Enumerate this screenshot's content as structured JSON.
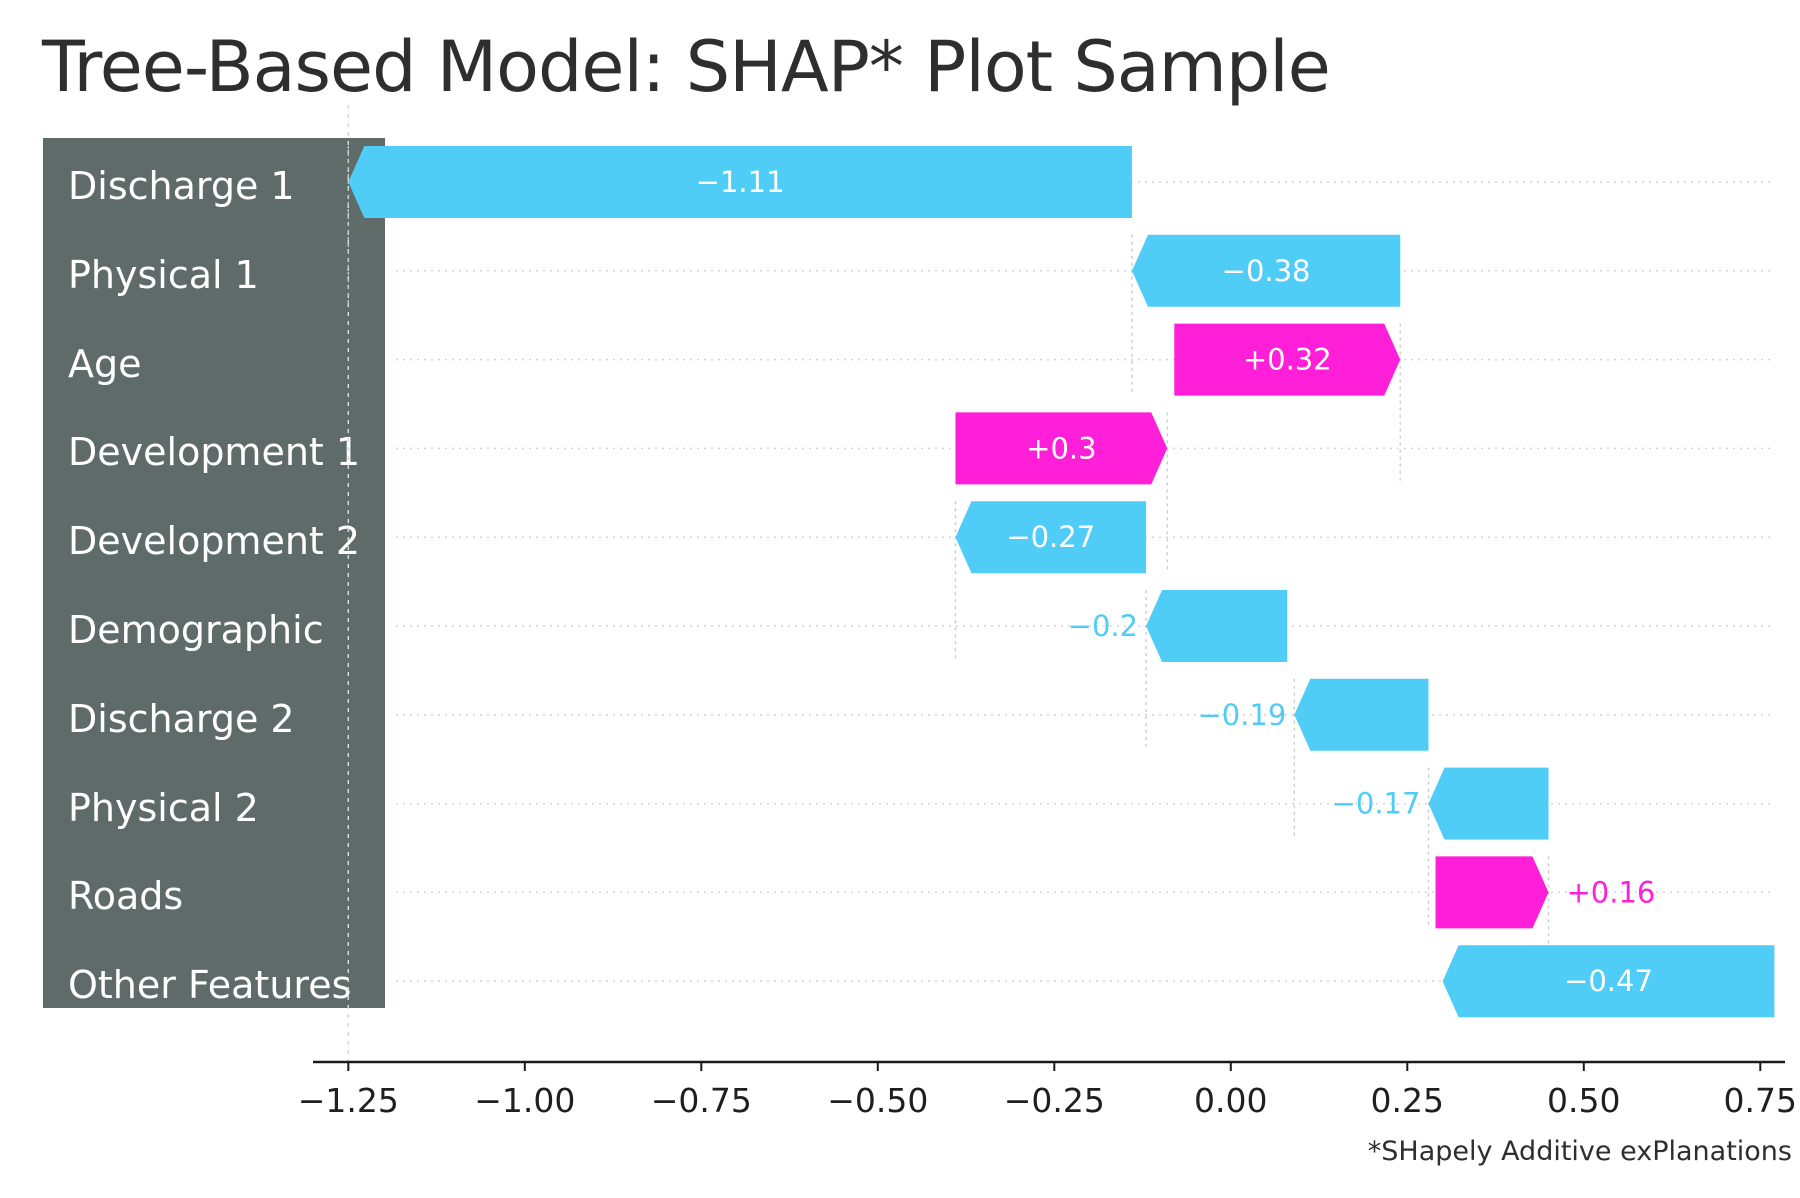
{
  "title": "Tree-Based Model: SHAP* Plot Sample",
  "footnote": "*SHapely Additive exPlanations",
  "colors": {
    "positive": "#ff1fd8",
    "negative": "#4fcdf6",
    "label_panel": "#5f6b69"
  },
  "chart_data": {
    "type": "waterfall",
    "categories": [
      "Discharge 1",
      "Physical 1",
      "Age",
      "Development 1",
      "Development 2",
      "Demographic",
      "Discharge 2",
      "Physical 2",
      "Roads",
      "Other Features"
    ],
    "values": [
      -1.11,
      -0.38,
      0.32,
      0.3,
      -0.27,
      -0.2,
      -0.19,
      -0.17,
      0.16,
      -0.47
    ],
    "value_labels": [
      "−1.11",
      "−0.38",
      "+0.32",
      "+0.3",
      "−0.27",
      "−0.2",
      "−0.19",
      "−0.17",
      "+0.16",
      "−0.47"
    ],
    "bar_start": [
      -0.14,
      0.24,
      -0.08,
      -0.39,
      -0.12,
      0.08,
      0.28,
      0.45,
      0.29,
      0.77
    ],
    "bar_end": [
      -1.25,
      -0.14,
      0.24,
      -0.09,
      -0.39,
      -0.12,
      0.09,
      0.28,
      0.45,
      0.3
    ],
    "xlim": [
      -1.3,
      0.785
    ],
    "xticks": [
      -1.25,
      -1.0,
      -0.75,
      -0.5,
      -0.25,
      0.0,
      0.25,
      0.5,
      0.75
    ],
    "xtick_labels": [
      "−1.25",
      "−1.00",
      "−0.75",
      "−0.50",
      "−0.25",
      "0.00",
      "0.25",
      "0.50",
      "0.75"
    ],
    "grid": "horizontal dotted"
  }
}
